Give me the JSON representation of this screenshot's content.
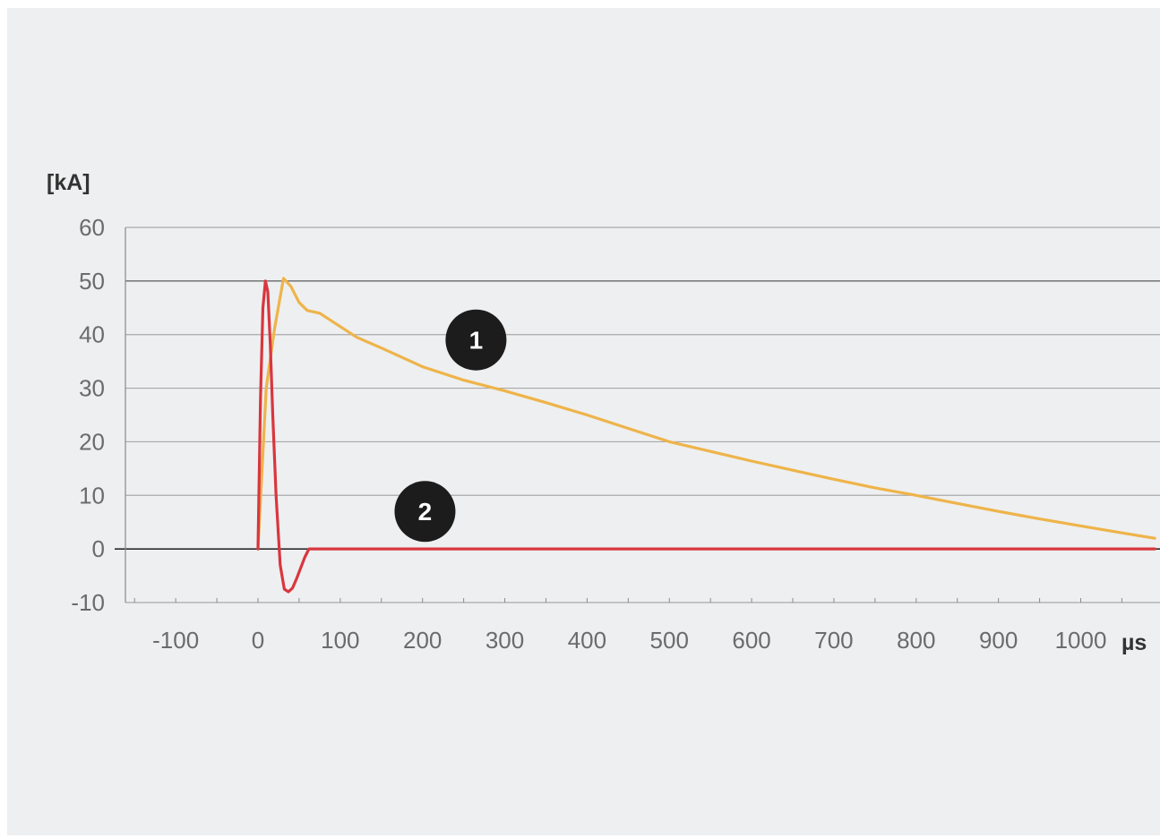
{
  "chart_data": {
    "type": "line",
    "ylabel": "[kA]",
    "xlabel": "µs",
    "xlim": [
      -150,
      1090
    ],
    "ylim": [
      -10,
      60
    ],
    "x_ticks": [
      -100,
      0,
      100,
      200,
      300,
      400,
      500,
      600,
      700,
      800,
      900,
      1000
    ],
    "x_tick_labels": [
      "-100",
      "0",
      "100",
      "200",
      "300",
      "400",
      "500",
      "600",
      "700",
      "800",
      "900",
      "1000"
    ],
    "y_ticks": [
      60,
      50,
      40,
      30,
      20,
      10,
      0,
      -10
    ],
    "y_tick_labels": [
      "60",
      "50",
      "40",
      "30",
      "20",
      "10",
      "0",
      "-10"
    ],
    "grid": true,
    "legend": "numbered markers on curves",
    "series": [
      {
        "marker_label": "1",
        "color": "#eeb44a",
        "x": [
          0,
          10,
          20,
          31,
          40,
          50,
          60,
          75,
          90,
          120,
          150,
          200,
          250,
          300,
          350,
          400,
          450,
          500,
          550,
          600,
          650,
          700,
          750,
          800,
          850,
          900,
          950,
          1000,
          1050,
          1090
        ],
        "y": [
          0,
          30,
          41,
          50.5,
          49,
          46,
          44.5,
          44,
          42.5,
          39.5,
          37.5,
          34,
          31.5,
          29.5,
          27.3,
          25,
          22.5,
          20,
          18.2,
          16.4,
          14.7,
          13,
          11.4,
          10,
          8.5,
          7,
          5.6,
          4.3,
          3,
          2
        ]
      },
      {
        "marker_label": "2",
        "color": "#d9363e",
        "x": [
          0,
          3,
          6,
          9,
          12,
          15,
          18,
          22,
          27,
          32,
          37,
          42,
          47,
          52,
          57,
          62,
          80,
          200,
          400,
          600,
          800,
          1000,
          1090
        ],
        "y": [
          0,
          28,
          45,
          50,
          48,
          38,
          25,
          10,
          -3,
          -7.5,
          -8,
          -7.3,
          -5.5,
          -3.5,
          -1.5,
          0,
          0,
          0,
          0,
          0,
          0,
          0,
          0
        ]
      }
    ],
    "markers": [
      {
        "text": "1",
        "series": 0,
        "x": 265,
        "y": 39
      },
      {
        "text": "2",
        "series": 1,
        "x": 203,
        "y": 7
      }
    ]
  }
}
